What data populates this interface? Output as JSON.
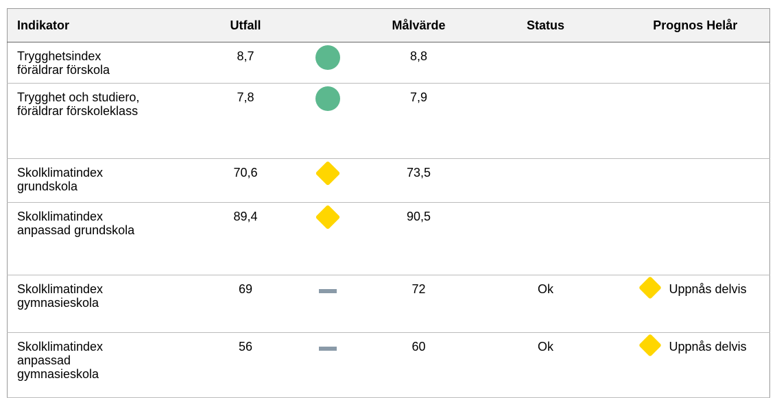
{
  "table": {
    "header": [
      "Indikator",
      "Utfall",
      "Målvärde",
      "Status",
      "Prognos Helår"
    ],
    "rows": [
      {
        "indikator": "Trygghetsindex föräldrar förskola",
        "utfall": "8,7",
        "malvarde": "8,8"
      },
      {
        "indikator": "Trygghet och studiero, föräldrar förskoleklass",
        "utfall": "7,8",
        "malvarde": "7,9"
      },
      {
        "indikator": "Skolklimatindex grundskola",
        "utfall": "70,6",
        "malvarde": "73,5"
      },
      {
        "indikator": "Skolklimatindex anpassad grundskola",
        "utfall": "89,4",
        "malvarde": "90,5"
      },
      {
        "indikator": "Skolklimatindex gymnasieskola",
        "utfall": "69",
        "malvarde": "72",
        "status": "Ok",
        "prognos": "Uppnås delvis"
      },
      {
        "indikator": "Skolklimatindex anpassad gymnasieskola",
        "utfall": "56",
        "malvarde": "60",
        "status": "Ok",
        "prognos": "Uppnås delvis"
      }
    ]
  }
}
